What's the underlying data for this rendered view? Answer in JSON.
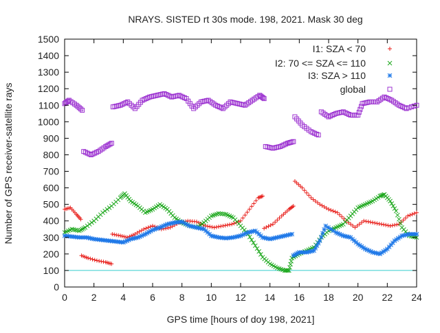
{
  "chart_data": {
    "type": "scatter",
    "title": "NRAYS. SISTED rt 30s mode. 198, 2021. Mask 30 deg",
    "xlabel": "GPS time [hours of doy 198, 2021]",
    "ylabel": "Number of GPS receiver-satellite rays",
    "xlim": [
      0,
      24
    ],
    "ylim": [
      0,
      1500
    ],
    "xticks": [
      0,
      2,
      4,
      6,
      8,
      10,
      12,
      14,
      16,
      18,
      20,
      22,
      24
    ],
    "yticks": [
      0,
      100,
      200,
      300,
      400,
      500,
      600,
      700,
      800,
      900,
      1000,
      1100,
      1200,
      1300,
      1400,
      1500
    ],
    "grid": false,
    "legend_position": "top-right",
    "reference_line": {
      "y": 100,
      "color": "#33cccc"
    },
    "series": [
      {
        "name": "I1: SZA < 70",
        "marker": "+",
        "color": "#e8201c",
        "points": [
          [
            0,
            470
          ],
          [
            0.4,
            480
          ],
          [
            0.8,
            440
          ],
          [
            1.1,
            410
          ],
          [
            1.15,
            190
          ],
          [
            1.6,
            175
          ],
          [
            2.2,
            160
          ],
          [
            2.8,
            150
          ],
          [
            3.2,
            140
          ],
          [
            3.25,
            320
          ],
          [
            3.8,
            310
          ],
          [
            4.3,
            300
          ],
          [
            4.8,
            320
          ],
          [
            5.4,
            350
          ],
          [
            6.0,
            370
          ],
          [
            6.6,
            350
          ],
          [
            7.2,
            360
          ],
          [
            7.8,
            390
          ],
          [
            8.4,
            400
          ],
          [
            9.0,
            395
          ],
          [
            9.6,
            370
          ],
          [
            10.2,
            360
          ],
          [
            10.8,
            370
          ],
          [
            11.4,
            380
          ],
          [
            12.0,
            400
          ],
          [
            12.6,
            470
          ],
          [
            13.2,
            540
          ],
          [
            13.5,
            550
          ],
          [
            13.6,
            355
          ],
          [
            14.2,
            380
          ],
          [
            14.8,
            430
          ],
          [
            15.3,
            470
          ],
          [
            15.6,
            490
          ],
          [
            15.7,
            640
          ],
          [
            16.2,
            600
          ],
          [
            16.8,
            540
          ],
          [
            17.4,
            500
          ],
          [
            18.0,
            470
          ],
          [
            18.6,
            450
          ],
          [
            19.2,
            400
          ],
          [
            19.8,
            360
          ],
          [
            20.4,
            400
          ],
          [
            21.0,
            390
          ],
          [
            21.6,
            380
          ],
          [
            22.2,
            370
          ],
          [
            22.8,
            380
          ],
          [
            23.4,
            430
          ],
          [
            24,
            450
          ]
        ]
      },
      {
        "name": "I2: 70 <= SZA <= 110",
        "marker": "x",
        "color": "#1ea81e",
        "points": [
          [
            0,
            330
          ],
          [
            0.5,
            350
          ],
          [
            1.0,
            340
          ],
          [
            1.4,
            360
          ],
          [
            2.0,
            400
          ],
          [
            2.6,
            450
          ],
          [
            3.2,
            490
          ],
          [
            3.8,
            540
          ],
          [
            4.1,
            565
          ],
          [
            4.5,
            520
          ],
          [
            5.0,
            490
          ],
          [
            5.5,
            450
          ],
          [
            6.0,
            470
          ],
          [
            6.5,
            500
          ],
          [
            7.0,
            470
          ],
          [
            7.5,
            420
          ],
          [
            8.0,
            390
          ],
          [
            8.5,
            370
          ],
          [
            9.0,
            360
          ],
          [
            9.5,
            390
          ],
          [
            10.0,
            430
          ],
          [
            10.5,
            445
          ],
          [
            11.0,
            440
          ],
          [
            11.5,
            420
          ],
          [
            12.0,
            370
          ],
          [
            12.5,
            320
          ],
          [
            13.0,
            250
          ],
          [
            13.5,
            180
          ],
          [
            14.0,
            140
          ],
          [
            14.5,
            115
          ],
          [
            15.0,
            100
          ],
          [
            15.3,
            100
          ],
          [
            15.5,
            175
          ],
          [
            16.0,
            200
          ],
          [
            16.5,
            220
          ],
          [
            17.0,
            240
          ],
          [
            17.5,
            300
          ],
          [
            18.0,
            340
          ],
          [
            18.5,
            360
          ],
          [
            19.0,
            380
          ],
          [
            19.5,
            430
          ],
          [
            20.0,
            480
          ],
          [
            20.5,
            500
          ],
          [
            21.0,
            520
          ],
          [
            21.5,
            550
          ],
          [
            21.8,
            560
          ],
          [
            22.2,
            520
          ],
          [
            22.6,
            460
          ],
          [
            23.0,
            360
          ],
          [
            23.5,
            310
          ],
          [
            24,
            300
          ]
        ]
      },
      {
        "name": "I3: SZA > 110",
        "marker": "*",
        "color": "#1e78e8",
        "points": [
          [
            0,
            310
          ],
          [
            0.5,
            305
          ],
          [
            1.0,
            300
          ],
          [
            1.5,
            300
          ],
          [
            2.0,
            290
          ],
          [
            2.5,
            285
          ],
          [
            3.0,
            280
          ],
          [
            3.5,
            275
          ],
          [
            4.0,
            270
          ],
          [
            4.5,
            290
          ],
          [
            5.0,
            300
          ],
          [
            5.5,
            320
          ],
          [
            6.0,
            345
          ],
          [
            6.5,
            360
          ],
          [
            7.0,
            380
          ],
          [
            7.5,
            390
          ],
          [
            8.0,
            395
          ],
          [
            8.5,
            370
          ],
          [
            9.0,
            360
          ],
          [
            9.5,
            350
          ],
          [
            10.0,
            310
          ],
          [
            10.5,
            300
          ],
          [
            11.0,
            295
          ],
          [
            11.5,
            300
          ],
          [
            12.0,
            310
          ],
          [
            12.5,
            330
          ],
          [
            13.0,
            340
          ],
          [
            13.5,
            300
          ],
          [
            14.0,
            290
          ],
          [
            14.5,
            300
          ],
          [
            15.0,
            310
          ],
          [
            15.5,
            320
          ],
          [
            15.6,
            190
          ],
          [
            16.0,
            210
          ],
          [
            16.5,
            210
          ],
          [
            17.0,
            220
          ],
          [
            17.4,
            280
          ],
          [
            17.8,
            370
          ],
          [
            18.5,
            330
          ],
          [
            19.0,
            310
          ],
          [
            19.5,
            300
          ],
          [
            20.0,
            260
          ],
          [
            20.5,
            230
          ],
          [
            21.0,
            210
          ],
          [
            21.5,
            200
          ],
          [
            22.0,
            230
          ],
          [
            22.5,
            280
          ],
          [
            23.0,
            310
          ],
          [
            23.5,
            320
          ],
          [
            24,
            320
          ]
        ]
      },
      {
        "name": "global",
        "marker": "square",
        "color": "#9b30d0",
        "points": [
          [
            0,
            1110
          ],
          [
            0.3,
            1130
          ],
          [
            0.8,
            1100
          ],
          [
            1.2,
            1070
          ],
          [
            1.3,
            820
          ],
          [
            1.8,
            800
          ],
          [
            2.3,
            820
          ],
          [
            2.8,
            850
          ],
          [
            3.2,
            870
          ],
          [
            3.3,
            1090
          ],
          [
            3.8,
            1100
          ],
          [
            4.3,
            1120
          ],
          [
            4.8,
            1080
          ],
          [
            5.3,
            1130
          ],
          [
            5.8,
            1150
          ],
          [
            6.3,
            1160
          ],
          [
            6.8,
            1170
          ],
          [
            7.3,
            1150
          ],
          [
            7.8,
            1160
          ],
          [
            8.3,
            1140
          ],
          [
            8.8,
            1080
          ],
          [
            9.3,
            1120
          ],
          [
            9.8,
            1130
          ],
          [
            10.3,
            1100
          ],
          [
            10.8,
            1080
          ],
          [
            11.3,
            1120
          ],
          [
            11.8,
            1110
          ],
          [
            12.3,
            1100
          ],
          [
            12.8,
            1130
          ],
          [
            13.3,
            1160
          ],
          [
            13.6,
            1140
          ],
          [
            13.7,
            850
          ],
          [
            14.2,
            840
          ],
          [
            14.7,
            850
          ],
          [
            15.2,
            870
          ],
          [
            15.6,
            880
          ],
          [
            15.7,
            1030
          ],
          [
            16.2,
            980
          ],
          [
            16.8,
            940
          ],
          [
            17.3,
            920
          ],
          [
            17.5,
            1060
          ],
          [
            18.0,
            1030
          ],
          [
            18.5,
            1050
          ],
          [
            19.0,
            1060
          ],
          [
            19.5,
            1040
          ],
          [
            20.0,
            1040
          ],
          [
            20.3,
            1110
          ],
          [
            20.8,
            1120
          ],
          [
            21.3,
            1120
          ],
          [
            21.8,
            1150
          ],
          [
            22.3,
            1130
          ],
          [
            22.8,
            1100
          ],
          [
            23.3,
            1080
          ],
          [
            24,
            1100
          ]
        ]
      }
    ]
  }
}
